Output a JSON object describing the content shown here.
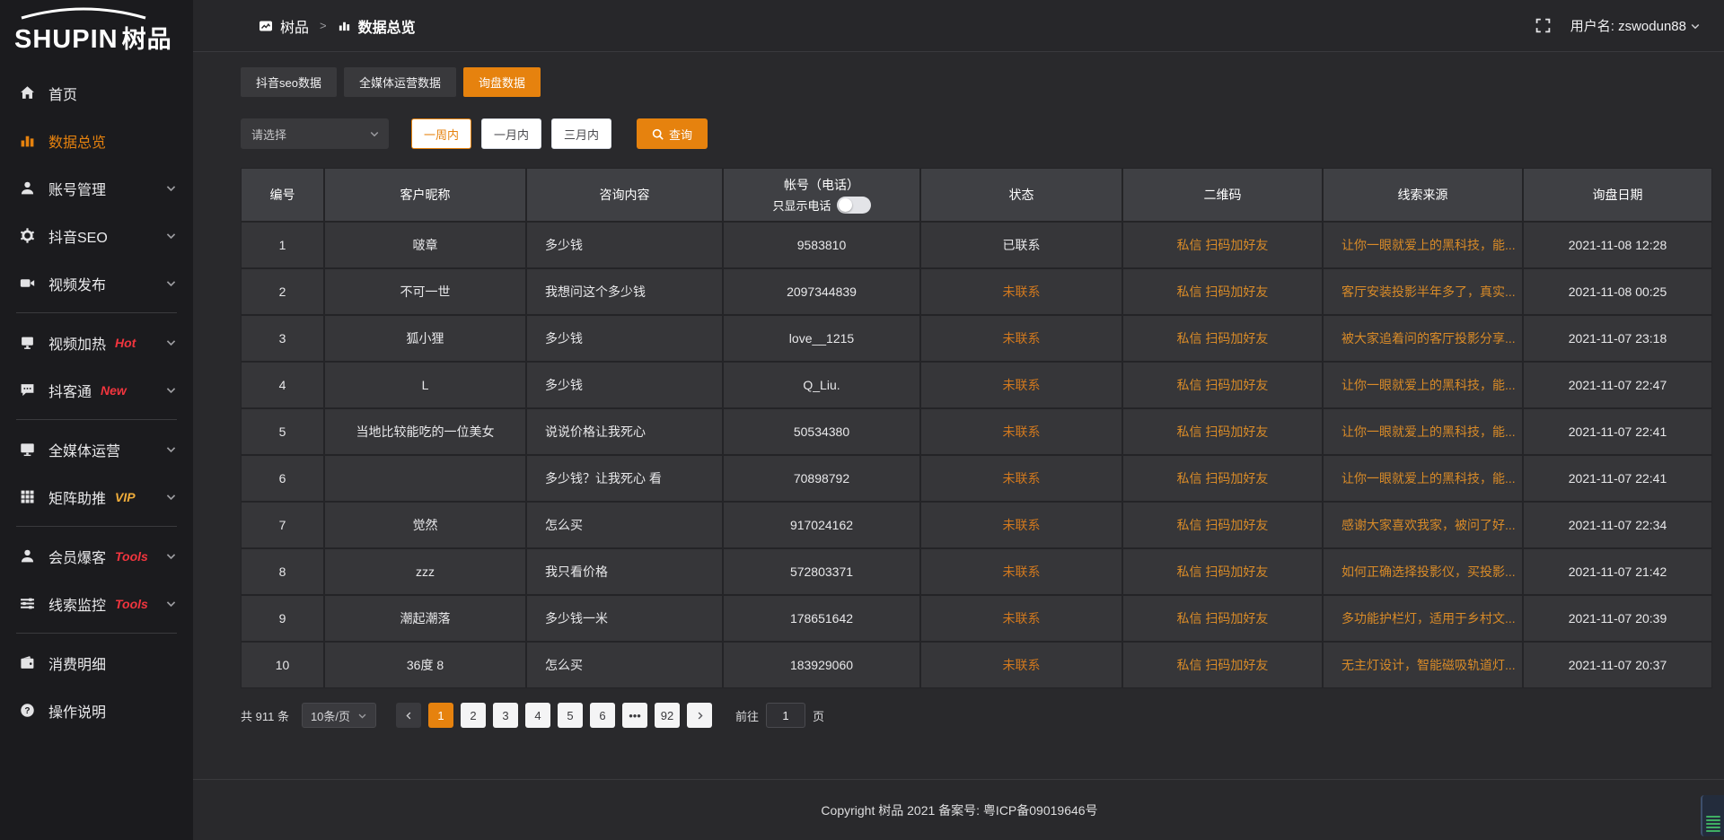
{
  "brand": {
    "logo_text": "SHUPIN",
    "logo_cn": "树品"
  },
  "topbar": {
    "breadcrumb_home": "树品",
    "breadcrumb_separator": ">",
    "breadcrumb_current": "数据总览",
    "username": "用户名: zswodun88"
  },
  "tabs": [
    {
      "label": "抖音seo数据",
      "active": false
    },
    {
      "label": "全媒体运营数据",
      "active": false
    },
    {
      "label": "询盘数据",
      "active": true
    }
  ],
  "filters": {
    "select_placeholder": "请选择",
    "range_buttons": [
      {
        "label": "一周内",
        "active": true
      },
      {
        "label": "一月内",
        "active": false
      },
      {
        "label": "三月内",
        "active": false
      }
    ],
    "query_label": "查询"
  },
  "sidebar": {
    "items": [
      {
        "id": "home",
        "label": "首页",
        "icon": "home-icon"
      },
      {
        "id": "data-overview",
        "label": "数据总览",
        "icon": "bar-chart-icon",
        "active": true
      },
      {
        "id": "account-manage",
        "label": "账号管理",
        "icon": "user-icon",
        "expandable": true
      },
      {
        "id": "douyin-seo",
        "label": "抖音SEO",
        "icon": "gear-icon",
        "expandable": true
      },
      {
        "id": "video-publish",
        "label": "视频发布",
        "icon": "video-camera-icon",
        "expandable": true
      },
      {
        "divider": true
      },
      {
        "id": "video-heat",
        "label": "视频加热",
        "icon": "screen-icon",
        "badge": "Hot",
        "badge_color": "#f1353e",
        "expandable": true
      },
      {
        "id": "douketong",
        "label": "抖客通",
        "icon": "chat-icon",
        "badge": "New",
        "badge_color": "#f1353e",
        "expandable": true
      },
      {
        "divider": true
      },
      {
        "id": "media-operation",
        "label": "全媒体运营",
        "icon": "monitor-icon",
        "expandable": true
      },
      {
        "id": "matrix-boost",
        "label": "矩阵助推",
        "icon": "grid-icon",
        "badge": "VIP",
        "badge_color": "#efac3a",
        "expandable": true
      },
      {
        "divider": true
      },
      {
        "id": "member-baoke",
        "label": "会员爆客",
        "icon": "member-icon",
        "badge": "Tools",
        "badge_color": "#f1353e",
        "expandable": true
      },
      {
        "id": "clue-monitor",
        "label": "线索监控",
        "icon": "sliders-icon",
        "badge": "Tools",
        "badge_color": "#f1353e",
        "expandable": true
      },
      {
        "divider": true
      },
      {
        "id": "consume-detail",
        "label": "消费明细",
        "icon": "wallet-icon"
      },
      {
        "id": "operation-guide",
        "label": "操作说明",
        "icon": "question-icon"
      }
    ]
  },
  "table": {
    "headers": [
      "编号",
      "客户昵称",
      "咨询内容",
      "帐号（电话）",
      "状态",
      "二维码",
      "线索来源",
      "询盘日期"
    ],
    "phone_toggle_label": "只显示电话",
    "rows": [
      {
        "no": "1",
        "nickname": "啵章",
        "content": "多少钱",
        "account": "9583810",
        "status": "已联系",
        "contacted": true,
        "qr": "私信 扫码加好友",
        "source": "让你一眼就爱上的黑科技，能...",
        "date": "2021-11-08 12:28"
      },
      {
        "no": "2",
        "nickname": "不可一世",
        "content": "我想问这个多少钱",
        "account": "2097344839",
        "status": "未联系",
        "contacted": false,
        "qr": "私信 扫码加好友",
        "source": "客厅安装投影半年多了，真实...",
        "date": "2021-11-08 00:25"
      },
      {
        "no": "3",
        "nickname": "狐小狸",
        "content": "多少钱",
        "account": "love__1215",
        "status": "未联系",
        "contacted": false,
        "qr": "私信 扫码加好友",
        "source": "被大家追着问的客厅投影分享...",
        "date": "2021-11-07 23:18"
      },
      {
        "no": "4",
        "nickname": "L",
        "content": "多少钱",
        "account": "Q_Liu.",
        "status": "未联系",
        "contacted": false,
        "qr": "私信 扫码加好友",
        "source": "让你一眼就爱上的黑科技，能...",
        "date": "2021-11-07 22:47"
      },
      {
        "no": "5",
        "nickname": "当地比较能吃的一位美女",
        "content": "说说价格让我死心",
        "account": "50534380",
        "status": "未联系",
        "contacted": false,
        "qr": "私信 扫码加好友",
        "source": "让你一眼就爱上的黑科技，能...",
        "date": "2021-11-07 22:41"
      },
      {
        "no": "6",
        "nickname": "",
        "content": "多少钱？让我死心 看",
        "account": "70898792",
        "status": "未联系",
        "contacted": false,
        "qr": "私信 扫码加好友",
        "source": "让你一眼就爱上的黑科技，能...",
        "date": "2021-11-07 22:41"
      },
      {
        "no": "7",
        "nickname": "觉然",
        "content": "怎么买",
        "account": "917024162",
        "status": "未联系",
        "contacted": false,
        "qr": "私信 扫码加好友",
        "source": "感谢大家喜欢我家，被问了好...",
        "date": "2021-11-07 22:34"
      },
      {
        "no": "8",
        "nickname": "zzz",
        "content": "我只看价格",
        "account": "572803371",
        "status": "未联系",
        "contacted": false,
        "qr": "私信 扫码加好友",
        "source": "如何正确选择投影仪，买投影...",
        "date": "2021-11-07 21:42"
      },
      {
        "no": "9",
        "nickname": "潮起潮落",
        "content": "多少钱一米",
        "account": "178651642",
        "status": "未联系",
        "contacted": false,
        "qr": "私信 扫码加好友",
        "source": "多功能护栏灯，适用于乡村文...",
        "date": "2021-11-07 20:39"
      },
      {
        "no": "10",
        "nickname": "36度 8",
        "content": "怎么买",
        "account": "183929060",
        "status": "未联系",
        "contacted": false,
        "qr": "私信 扫码加好友",
        "source": "无主灯设计，智能磁吸轨道灯...",
        "date": "2021-11-07 20:37"
      }
    ]
  },
  "pagination": {
    "total": "共 911 条",
    "page_size": "10条/页",
    "pages": [
      {
        "label": "1",
        "active": true
      },
      {
        "label": "2"
      },
      {
        "label": "3"
      },
      {
        "label": "4"
      },
      {
        "label": "5"
      },
      {
        "label": "6"
      },
      {
        "label": "•••",
        "ellipsis": true
      },
      {
        "label": "92"
      }
    ],
    "goto_label": "前往",
    "goto_value": "1",
    "goto_suffix": "页"
  },
  "footer": {
    "copyright": "Copyright 树品 2021 备案号: 粤ICP备09019646号"
  },
  "colors": {
    "accent_orange": "#e6820e",
    "link_orange": "#d98b28",
    "status_pending_orange": "#d2791e",
    "badge_red": "#f1353e",
    "badge_gold": "#efac3a"
  }
}
